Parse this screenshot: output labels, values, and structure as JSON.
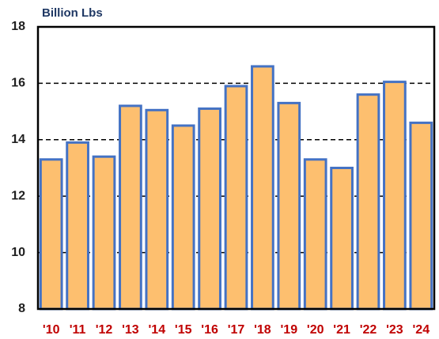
{
  "chart_data": {
    "type": "bar",
    "title": "Billion Lbs",
    "categories": [
      "'10",
      "'11",
      "'12",
      "'13",
      "'14",
      "'15",
      "'16",
      "'17",
      "'18",
      "'19",
      "'20",
      "'21",
      "'22",
      "'23",
      "'24"
    ],
    "values": [
      13.3,
      13.9,
      13.4,
      15.2,
      15.05,
      14.5,
      15.1,
      15.9,
      16.6,
      15.3,
      13.3,
      13.0,
      15.6,
      16.05,
      14.6
    ],
    "color": "#fdbf6f",
    "edge_color": "#4472c4",
    "label_color": "#c00000",
    "ylim": [
      8,
      18
    ],
    "yticks": [
      8,
      10,
      12,
      14,
      16,
      18
    ],
    "grid": true
  }
}
